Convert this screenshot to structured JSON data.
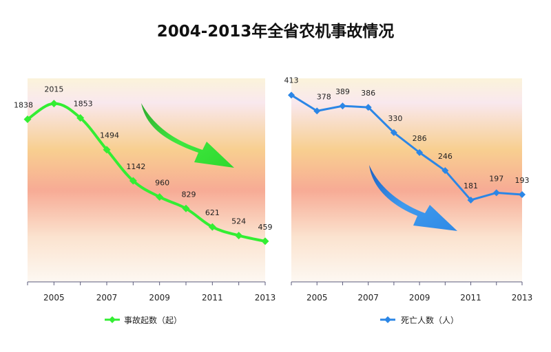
{
  "title": "2004-2013年全省农机事故情况",
  "colors": {
    "green": "#33ee33",
    "blue": "#2b86e6"
  },
  "chart_data": [
    {
      "type": "line",
      "x": [
        2004,
        2005,
        2006,
        2007,
        2008,
        2009,
        2010,
        2011,
        2012,
        2013
      ],
      "tick_labels": [
        "2005",
        "2007",
        "2009",
        "2011",
        "2013"
      ],
      "series": [
        {
          "name": "事故起数（起）",
          "values": [
            1838,
            2015,
            1853,
            1494,
            1142,
            960,
            829,
            621,
            524,
            459
          ]
        }
      ],
      "ylim": [
        0,
        2300
      ],
      "grid": false,
      "legend": "bottom"
    },
    {
      "type": "line",
      "x": [
        2004,
        2005,
        2006,
        2007,
        2008,
        2009,
        2010,
        2011,
        2012,
        2013
      ],
      "tick_labels": [
        "2005",
        "2007",
        "2009",
        "2011",
        "2013"
      ],
      "series": [
        {
          "name": "死亡人数（人）",
          "values": [
            413,
            378,
            389,
            386,
            330,
            286,
            246,
            181,
            197,
            193
          ]
        }
      ],
      "ylim": [
        0,
        450
      ],
      "grid": false,
      "legend": "bottom"
    }
  ]
}
